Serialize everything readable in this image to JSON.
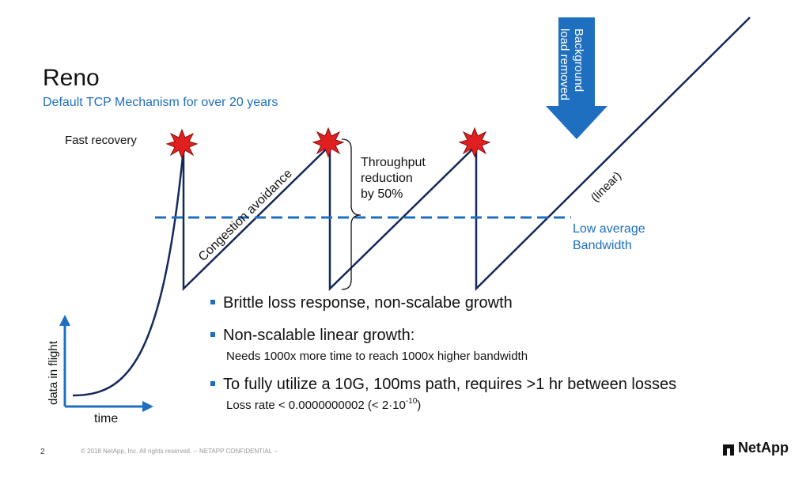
{
  "slide": {
    "title": "Reno",
    "subtitle": "Default TCP Mechanism for over 20 years"
  },
  "diagram": {
    "labels": {
      "fast_recovery": "Fast recovery",
      "congestion_avoidance": "Congestion avoidance",
      "throughput_reduction_line1": "Throughput",
      "throughput_reduction_line2": "reduction",
      "throughput_reduction_line3": "by 50%",
      "linear": "(linear)",
      "low_avg_bw_line1": "Low average",
      "low_avg_bw_line2": "Bandwidth",
      "background_line1": "Background",
      "background_line2": "load removed",
      "y_axis": "data in flight",
      "x_axis": "time"
    },
    "colors": {
      "line": "#14285a",
      "accent": "#1f6fc0",
      "burst": "#e02020"
    }
  },
  "bullets": [
    {
      "text": "Brittle loss response, non-scalabe growth",
      "sub": ""
    },
    {
      "text": "Non-scalable linear growth:",
      "sub": "Needs 1000x more time to reach 1000x higher bandwidth"
    },
    {
      "text": "To fully utilize a 10G, 100ms path, requires >1 hr between losses",
      "sub_prefix": "Loss rate < 0.0000000002 (< 2·10",
      "sub_exp": "-10",
      "sub_suffix": ")"
    }
  ],
  "footer": {
    "page_number": "2",
    "copyright": "© 2018 NetApp, Inc. All rights reserved. -- NETAPP CONFIDENTIAL --",
    "logo_text": "NetApp"
  }
}
